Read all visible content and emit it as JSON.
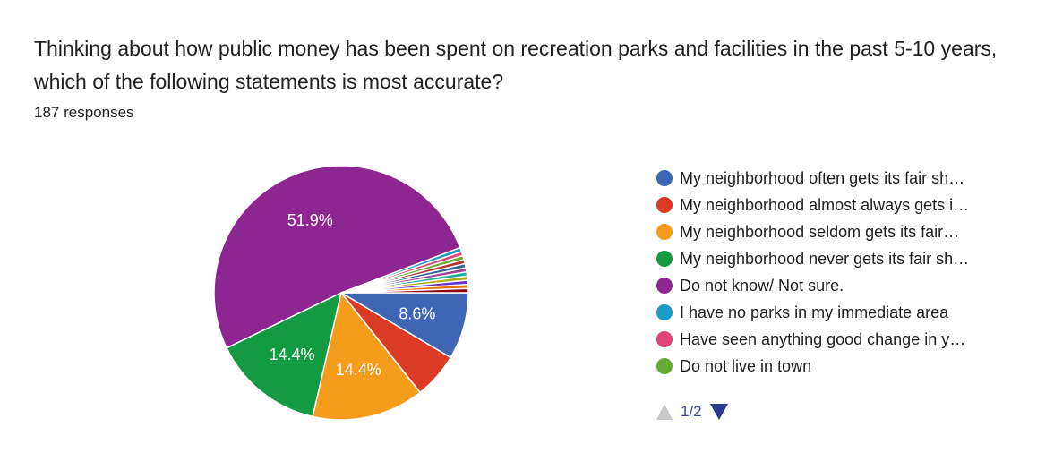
{
  "title": "Thinking about how public money has been spent on recreation parks and facilities in the past 5-10 years, which of the following statements is most accurate?",
  "responses": "187 responses",
  "chart_data": {
    "type": "pie",
    "title": "Thinking about how public money has been spent on recreation parks and facilities in the past 5-10 years, which of the following statements is most accurate?",
    "total_responses": 187,
    "legend_position": "right",
    "slices": [
      {
        "label": "My neighborhood often gets its fair sh…",
        "percent": 8.6,
        "color": "#3f66b5",
        "data_label": "8.6%"
      },
      {
        "label": "My neighborhood almost always gets i…",
        "percent": 5.9,
        "color": "#db3b25",
        "data_label": ""
      },
      {
        "label": "My neighborhood seldom gets its fair…",
        "percent": 14.4,
        "color": "#f59c1c",
        "data_label": "14.4%"
      },
      {
        "label": "My neighborhood never gets its fair sh…",
        "percent": 14.4,
        "color": "#139a43",
        "data_label": "14.4%"
      },
      {
        "label": "Do not know/ Not sure.",
        "percent": 51.9,
        "color": "#8e2691",
        "data_label": "51.9%"
      },
      {
        "label": "I have no parks in my immediate area",
        "percent": 0.53,
        "color": "#1b9ac6",
        "data_label": ""
      },
      {
        "label": "Have seen anything good change in y…",
        "percent": 0.53,
        "color": "#dd4477",
        "data_label": ""
      },
      {
        "label": "Do not live in town",
        "percent": 0.53,
        "color": "#66aa33",
        "data_label": ""
      },
      {
        "label": "",
        "percent": 0.53,
        "color": "#b82e2e",
        "data_label": ""
      },
      {
        "label": "",
        "percent": 0.53,
        "color": "#316395",
        "data_label": ""
      },
      {
        "label": "",
        "percent": 0.53,
        "color": "#994499",
        "data_label": ""
      },
      {
        "label": "",
        "percent": 0.53,
        "color": "#22aa99",
        "data_label": ""
      },
      {
        "label": "",
        "percent": 0.53,
        "color": "#aaaa11",
        "data_label": ""
      },
      {
        "label": "",
        "percent": 0.53,
        "color": "#6633cc",
        "data_label": ""
      },
      {
        "label": "",
        "percent": 0.53,
        "color": "#e67300",
        "data_label": ""
      },
      {
        "label": "",
        "percent": 0.53,
        "color": "#8b0707",
        "data_label": ""
      }
    ]
  },
  "legend": {
    "visible_count": 8,
    "page_indicator": "1/2"
  }
}
